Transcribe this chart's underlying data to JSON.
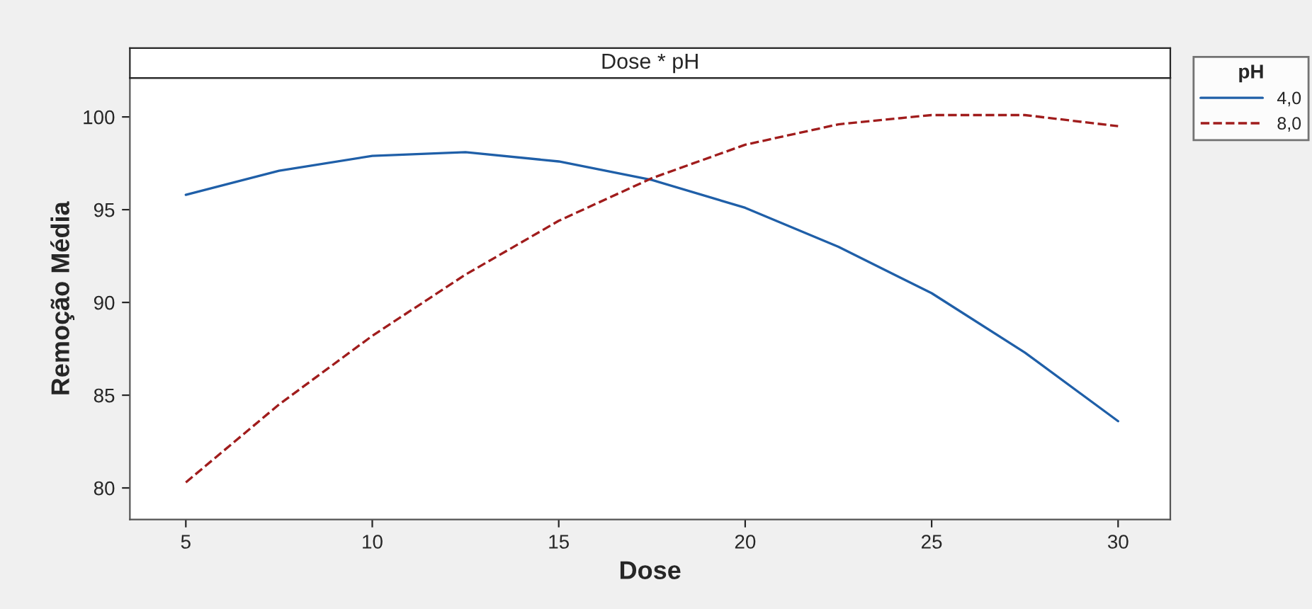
{
  "chart_data": {
    "type": "line",
    "title": "Dose * pH",
    "xlabel": "Dose",
    "ylabel": "Remoção Média",
    "legend_title": "pH",
    "legend": "right",
    "x": [
      5,
      7.5,
      10,
      12.5,
      15,
      17.5,
      20,
      22.5,
      25,
      27.5,
      30
    ],
    "series": [
      {
        "name": "4,0",
        "color": "#1f5fa8",
        "line_style": "solid",
        "values": [
          95.8,
          97.1,
          97.9,
          98.1,
          97.6,
          96.6,
          95.1,
          93.0,
          90.5,
          87.3,
          83.6
        ]
      },
      {
        "name": "8,0",
        "color": "#a01c1c",
        "line_style": "dashed",
        "values": [
          80.3,
          84.5,
          88.2,
          91.5,
          94.4,
          96.7,
          98.5,
          99.6,
          100.1,
          100.1,
          99.5
        ]
      }
    ],
    "xlim": [
      3.5,
      31.4
    ],
    "xticks": [
      5,
      10,
      15,
      20,
      25,
      30
    ],
    "ylim": [
      78.3,
      102.1
    ],
    "yticks": [
      80,
      85,
      90,
      95,
      100
    ],
    "grid": false
  }
}
